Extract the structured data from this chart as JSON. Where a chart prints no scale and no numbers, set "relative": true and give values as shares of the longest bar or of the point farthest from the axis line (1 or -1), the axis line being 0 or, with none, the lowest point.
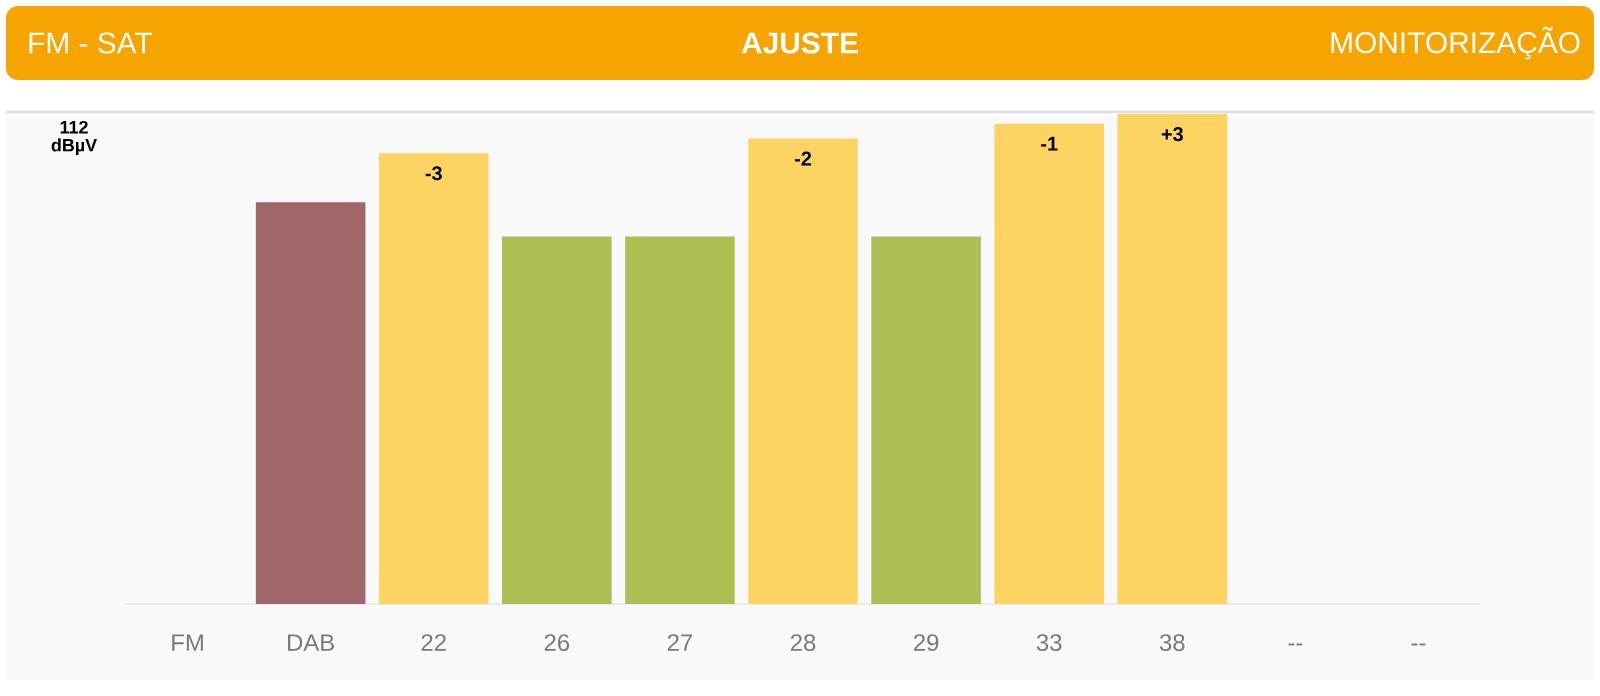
{
  "chart_data": {
    "type": "bar",
    "title": "AJUSTE",
    "annotations": [
      "FM - SAT",
      "MONITORIZAÇÃO",
      "112 dBµV",
      {
        "text": "-3",
        "x": "22",
        "y": 0.92
      },
      {
        "text": "-2",
        "x": "28",
        "y": 0.95
      },
      {
        "text": "-1",
        "x": "33",
        "y": 0.98
      },
      {
        "text": "+3",
        "x": "38",
        "y": 1
      }
    ],
    "categories": [
      "FM",
      "DAB",
      "22",
      "26",
      "27",
      "28",
      "29",
      "33",
      "38",
      "--",
      "--"
    ],
    "values": [
      null,
      0.82,
      0.92,
      0.75,
      0.75,
      0.95,
      0.75,
      0.98,
      1,
      null,
      null
    ],
    "colors": [
      null,
      "#a0666a",
      "#fdd462",
      "#adbf52",
      "#adbf52",
      "#fdd462",
      "#adbf52",
      "#fdd462",
      "#fdd462",
      null,
      null
    ],
    "relative": true
  }
}
